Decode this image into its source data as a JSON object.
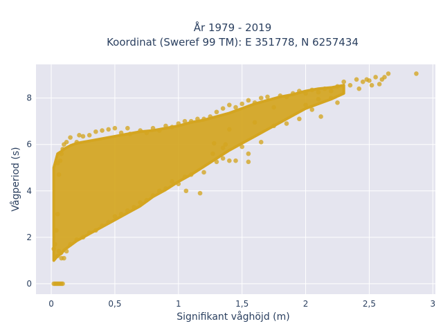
{
  "chart_data": {
    "type": "scatter",
    "title_line1": "År 1979 - 2019",
    "title_line2": "Koordinat (Sweref 99 TM): E 351778, N 6257434",
    "xlabel": "Signifikant våghöjd (m)",
    "ylabel": "Vågperiod (s)",
    "xlim": [
      -0.12,
      3.02
    ],
    "ylim": [
      -0.45,
      9.45
    ],
    "x_ticks": [
      0,
      0.5,
      1,
      1.5,
      2,
      2.5,
      3
    ],
    "x_tick_labels": [
      "0",
      "0,5",
      "1",
      "1,5",
      "2",
      "2,5",
      "3"
    ],
    "y_ticks": [
      0,
      2,
      4,
      6,
      8
    ],
    "y_tick_labels": [
      "0",
      "2",
      "4",
      "6",
      "8"
    ],
    "grid": true,
    "legend": "none",
    "marker_color": "#d4a520",
    "marker_opacity": 0.78,
    "plot_background": "#e5e5ef",
    "series": [
      {
        "points": [
          [
            0.02,
            0
          ],
          [
            0.03,
            0
          ],
          [
            0.04,
            0
          ],
          [
            0.05,
            0
          ],
          [
            0.06,
            0
          ],
          [
            0.07,
            0
          ],
          [
            0.08,
            0
          ],
          [
            0.09,
            0
          ],
          [
            0.02,
            1.5
          ],
          [
            0.03,
            1.7
          ],
          [
            0.05,
            1.2
          ],
          [
            0.06,
            1.4
          ],
          [
            0.08,
            1.1
          ],
          [
            0.1,
            1.1
          ],
          [
            0.04,
            2.3
          ],
          [
            0.05,
            3.0
          ],
          [
            0.06,
            4.7
          ],
          [
            0.07,
            5.3
          ],
          [
            0.05,
            5.2
          ],
          [
            0.08,
            5.6
          ],
          [
            0.09,
            5.8
          ],
          [
            0.1,
            6.0
          ],
          [
            0.12,
            6.1
          ],
          [
            0.15,
            6.3
          ],
          [
            0.2,
            6.1
          ],
          [
            0.22,
            6.4
          ],
          [
            0.25,
            6.35
          ],
          [
            0.3,
            6.4
          ],
          [
            0.35,
            6.55
          ],
          [
            0.4,
            6.6
          ],
          [
            0.45,
            6.65
          ],
          [
            0.5,
            6.7
          ],
          [
            0.55,
            6.5
          ],
          [
            0.6,
            6.7
          ],
          [
            0.62,
            6.45
          ],
          [
            0.7,
            6.6
          ],
          [
            0.75,
            6.5
          ],
          [
            0.8,
            6.7
          ],
          [
            0.85,
            6.6
          ],
          [
            0.9,
            6.8
          ],
          [
            0.95,
            6.75
          ],
          [
            1.0,
            6.9
          ],
          [
            1.05,
            7.0
          ],
          [
            1.1,
            7.0
          ],
          [
            1.15,
            7.1
          ],
          [
            1.2,
            7.1
          ],
          [
            1.25,
            7.2
          ],
          [
            1.3,
            7.4
          ],
          [
            1.35,
            7.55
          ],
          [
            1.4,
            7.7
          ],
          [
            1.45,
            7.6
          ],
          [
            1.5,
            7.75
          ],
          [
            1.55,
            7.9
          ],
          [
            1.6,
            7.8
          ],
          [
            1.65,
            8.0
          ],
          [
            1.7,
            8.05
          ],
          [
            1.75,
            7.6
          ],
          [
            1.8,
            8.1
          ],
          [
            1.85,
            8.05
          ],
          [
            1.9,
            8.2
          ],
          [
            1.95,
            8.3
          ],
          [
            2.0,
            8.2
          ],
          [
            2.05,
            8.35
          ],
          [
            2.1,
            8.25
          ],
          [
            2.15,
            8.4
          ],
          [
            2.2,
            8.3
          ],
          [
            2.25,
            8.5
          ],
          [
            2.3,
            8.7
          ],
          [
            2.35,
            8.55
          ],
          [
            2.4,
            8.8
          ],
          [
            2.45,
            8.7
          ],
          [
            2.48,
            8.8
          ],
          [
            2.5,
            8.75
          ],
          [
            2.55,
            8.9
          ],
          [
            2.6,
            8.8
          ],
          [
            2.62,
            8.9
          ],
          [
            2.58,
            8.6
          ],
          [
            2.65,
            9.05
          ],
          [
            2.87,
            9.05
          ],
          [
            2.52,
            8.55
          ],
          [
            2.42,
            8.4
          ],
          [
            2.2,
            8.0
          ],
          [
            2.1,
            7.95
          ],
          [
            2.25,
            7.8
          ],
          [
            2.05,
            7.5
          ],
          [
            2.0,
            7.7
          ],
          [
            1.95,
            7.1
          ],
          [
            2.12,
            7.2
          ],
          [
            1.85,
            6.9
          ],
          [
            1.6,
            6.95
          ],
          [
            1.75,
            6.8
          ],
          [
            1.65,
            6.1
          ],
          [
            1.5,
            5.9
          ],
          [
            1.55,
            5.6
          ],
          [
            1.4,
            5.3
          ],
          [
            1.45,
            5.3
          ],
          [
            1.3,
            5.25
          ],
          [
            1.35,
            5.4
          ],
          [
            1.2,
            4.8
          ],
          [
            1.1,
            4.7
          ],
          [
            1.05,
            4.6
          ],
          [
            0.95,
            4.4
          ],
          [
            1.0,
            4.3
          ],
          [
            0.9,
            4.1
          ],
          [
            0.85,
            4.0
          ],
          [
            0.8,
            3.8
          ],
          [
            0.75,
            3.6
          ],
          [
            0.7,
            3.5
          ],
          [
            0.65,
            3.3
          ],
          [
            0.6,
            3.15
          ],
          [
            0.55,
            3.0
          ],
          [
            0.5,
            2.9
          ],
          [
            0.45,
            2.65
          ],
          [
            0.4,
            2.5
          ],
          [
            0.35,
            2.3
          ],
          [
            0.3,
            2.2
          ],
          [
            0.25,
            2.0
          ],
          [
            0.2,
            1.9
          ],
          [
            0.15,
            1.7
          ],
          [
            0.12,
            1.4
          ],
          [
            1.17,
            3.9
          ],
          [
            1.06,
            4.0
          ],
          [
            1.27,
            5.6
          ],
          [
            1.37,
            6.0
          ],
          [
            1.4,
            6.65
          ],
          [
            1.55,
            5.25
          ],
          [
            1.35,
            5.85
          ],
          [
            1.28,
            6.05
          ]
        ]
      }
    ],
    "bands": [
      [
        0.02,
        1.0,
        5.0
      ],
      [
        0.05,
        1.2,
        5.6
      ],
      [
        0.08,
        1.3,
        5.7
      ],
      [
        0.1,
        1.45,
        5.8
      ],
      [
        0.15,
        1.65,
        5.95
      ],
      [
        0.2,
        1.85,
        6.05
      ],
      [
        0.3,
        2.15,
        6.15
      ],
      [
        0.4,
        2.45,
        6.25
      ],
      [
        0.5,
        2.75,
        6.35
      ],
      [
        0.6,
        3.05,
        6.45
      ],
      [
        0.7,
        3.35,
        6.55
      ],
      [
        0.8,
        3.75,
        6.6
      ],
      [
        0.9,
        4.05,
        6.7
      ],
      [
        1.0,
        4.4,
        6.8
      ],
      [
        1.1,
        4.7,
        6.95
      ],
      [
        1.2,
        5.05,
        7.05
      ],
      [
        1.3,
        5.4,
        7.2
      ],
      [
        1.4,
        5.75,
        7.35
      ],
      [
        1.5,
        6.05,
        7.55
      ],
      [
        1.6,
        6.35,
        7.75
      ],
      [
        1.7,
        6.65,
        7.9
      ],
      [
        1.8,
        6.95,
        8.05
      ],
      [
        1.9,
        7.25,
        8.15
      ],
      [
        2.0,
        7.55,
        8.3
      ],
      [
        2.1,
        7.75,
        8.4
      ],
      [
        2.2,
        7.95,
        8.45
      ],
      [
        2.3,
        8.2,
        8.55
      ]
    ]
  }
}
